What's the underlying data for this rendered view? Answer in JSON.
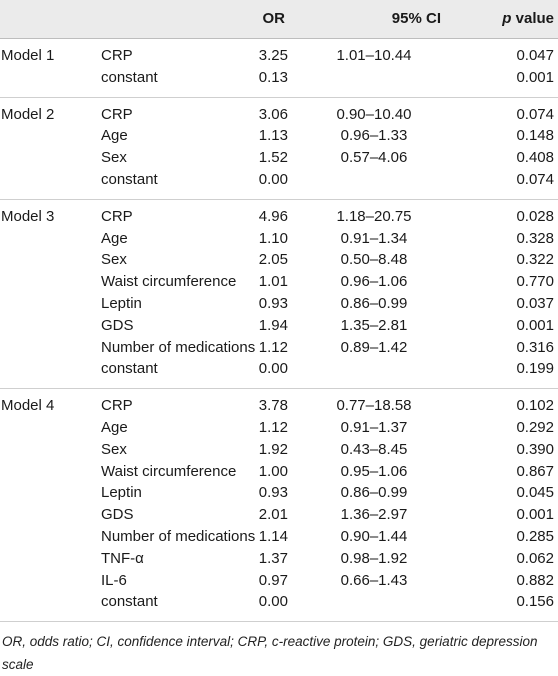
{
  "header": {
    "or": "OR",
    "ci": "95% CI",
    "p_italic": "p",
    "p_rest": " value"
  },
  "models": [
    {
      "name": "Model 1",
      "rows": [
        {
          "var": "CRP",
          "or": "3.25",
          "ci": "1.01–10.44",
          "p": "0.047"
        },
        {
          "var": "constant",
          "or": "0.13",
          "ci": "",
          "p": "0.001"
        }
      ]
    },
    {
      "name": "Model 2",
      "rows": [
        {
          "var": "CRP",
          "or": "3.06",
          "ci": "0.90–10.40",
          "p": "0.074"
        },
        {
          "var": "Age",
          "or": "1.13",
          "ci": "0.96–1.33",
          "p": "0.148"
        },
        {
          "var": "Sex",
          "or": "1.52",
          "ci": "0.57–4.06",
          "p": "0.408"
        },
        {
          "var": "constant",
          "or": "0.00",
          "ci": "",
          "p": "0.074"
        }
      ]
    },
    {
      "name": "Model 3",
      "rows": [
        {
          "var": "CRP",
          "or": "4.96",
          "ci": "1.18–20.75",
          "p": "0.028"
        },
        {
          "var": "Age",
          "or": "1.10",
          "ci": "0.91–1.34",
          "p": "0.328"
        },
        {
          "var": "Sex",
          "or": "2.05",
          "ci": "0.50–8.48",
          "p": "0.322"
        },
        {
          "var": "Waist circumference",
          "or": "1.01",
          "ci": "0.96–1.06",
          "p": "0.770"
        },
        {
          "var": "Leptin",
          "or": "0.93",
          "ci": "0.86–0.99",
          "p": "0.037"
        },
        {
          "var": "GDS",
          "or": "1.94",
          "ci": "1.35–2.81",
          "p": "0.001"
        },
        {
          "var": "Number of medications",
          "or": "1.12",
          "ci": "0.89–1.42",
          "p": "0.316"
        },
        {
          "var": "constant",
          "or": "0.00",
          "ci": "",
          "p": "0.199"
        }
      ]
    },
    {
      "name": "Model 4",
      "rows": [
        {
          "var": "CRP",
          "or": "3.78",
          "ci": "0.77–18.58",
          "p": "0.102"
        },
        {
          "var": "Age",
          "or": "1.12",
          "ci": "0.91–1.37",
          "p": "0.292"
        },
        {
          "var": "Sex",
          "or": "1.92",
          "ci": "0.43–8.45",
          "p": "0.390"
        },
        {
          "var": "Waist circumference",
          "or": "1.00",
          "ci": "0.95–1.06",
          "p": "0.867"
        },
        {
          "var": "Leptin",
          "or": "0.93",
          "ci": "0.86–0.99",
          "p": "0.045"
        },
        {
          "var": "GDS",
          "or": "2.01",
          "ci": "1.36–2.97",
          "p": "0.001"
        },
        {
          "var": "Number of medications",
          "or": "1.14",
          "ci": "0.90–1.44",
          "p": "0.285"
        },
        {
          "var": "TNF-α",
          "or": "1.37",
          "ci": "0.98–1.92",
          "p": "0.062"
        },
        {
          "var": "IL-6",
          "or": "0.97",
          "ci": "0.66–1.43",
          "p": "0.882"
        },
        {
          "var": "constant",
          "or": "0.00",
          "ci": "",
          "p": "0.156"
        }
      ]
    }
  ],
  "footnote": "OR, odds ratio; CI, confidence interval; CRP, c-reactive protein; GDS, geriatric depression scale"
}
